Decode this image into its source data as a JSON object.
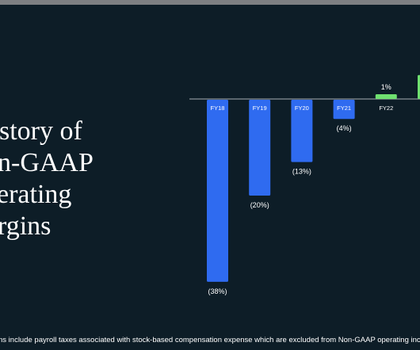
{
  "slide": {
    "title_lines": [
      "story of",
      "n-GAAP",
      "erating",
      "rgins"
    ],
    "footnote": "ns include  payroll taxes associated with stock-based compensation expense which are excluded from Non-GAAP operating incom"
  },
  "colors": {
    "background": "#0d1d27",
    "window_bar": "#7d7f82",
    "negative_bar": "#2f6bf0",
    "positive_bar": "#6fe070",
    "baseline": "#8a9399",
    "text": "#ffffff"
  },
  "chart_data": {
    "type": "bar",
    "title": "",
    "xlabel": "",
    "ylabel": "",
    "grid": false,
    "categories": [
      "FY18",
      "FY19",
      "FY20",
      "FY21",
      "FY22",
      ""
    ],
    "values": [
      -38,
      -20,
      -13,
      -4,
      1,
      5
    ],
    "data_labels": [
      "(38%)",
      "(20%)",
      "(13%)",
      "(4%)",
      "1%",
      ""
    ],
    "unit": "%"
  }
}
